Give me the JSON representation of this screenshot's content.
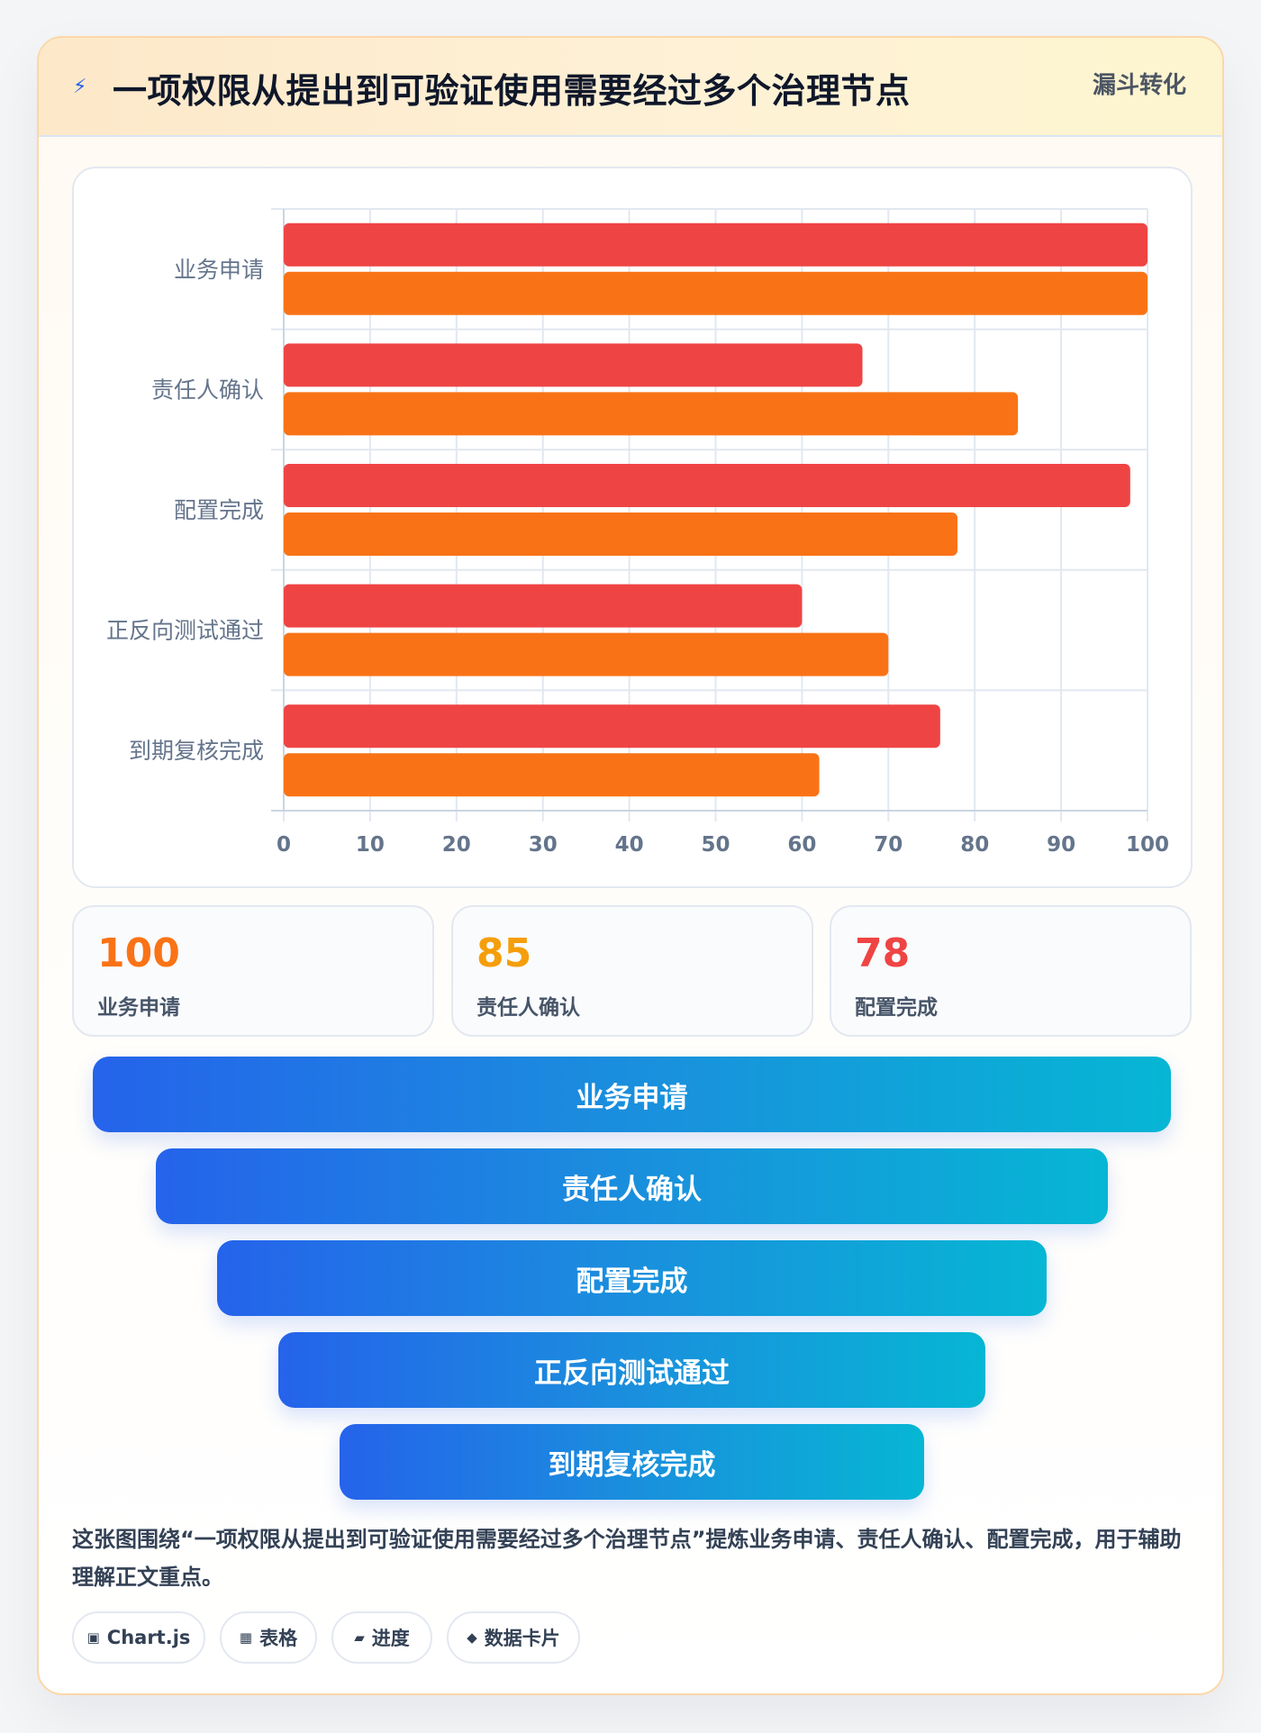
{
  "header": {
    "icon": "lightning-icon",
    "title": "一项权限从提出到可验证使用需要经过多个治理节点",
    "tag": "漏斗转化"
  },
  "chart_data": {
    "type": "bar",
    "orientation": "horizontal",
    "categories": [
      "业务申请",
      "责任人确认",
      "配置完成",
      "正反向测试通过",
      "到期复核完成"
    ],
    "series": [
      {
        "values": [
          100,
          67,
          98,
          60,
          76
        ],
        "color": "#ef4444"
      },
      {
        "values": [
          100,
          85,
          78,
          70,
          62
        ],
        "color": "#f97316"
      }
    ],
    "xlim": [
      0,
      100
    ],
    "xticks": [
      0,
      10,
      20,
      30,
      40,
      50,
      60,
      70,
      80,
      90,
      100
    ],
    "grid": true,
    "legend": "none"
  },
  "stats": [
    {
      "value": "100",
      "label": "业务申请",
      "color": "#f97316"
    },
    {
      "value": "85",
      "label": "责任人确认",
      "color": "#f59e0b"
    },
    {
      "value": "78",
      "label": "配置完成",
      "color": "#ef4444"
    }
  ],
  "funnel": [
    {
      "label": "业务申请"
    },
    {
      "label": "责任人确认"
    },
    {
      "label": "配置完成"
    },
    {
      "label": "正反向测试通过"
    },
    {
      "label": "到期复核完成"
    }
  ],
  "description": "这张图围绕“一项权限从提出到可验证使用需要经过多个治理节点”提炼业务申请、责任人确认、配置完成，用于辅助理解正文重点。",
  "chips": [
    {
      "icon": "chart-icon",
      "label": "Chart.js"
    },
    {
      "icon": "table-icon",
      "label": "表格"
    },
    {
      "icon": "progress-icon",
      "label": "进度"
    },
    {
      "icon": "data-card-icon",
      "label": "数据卡片"
    }
  ]
}
